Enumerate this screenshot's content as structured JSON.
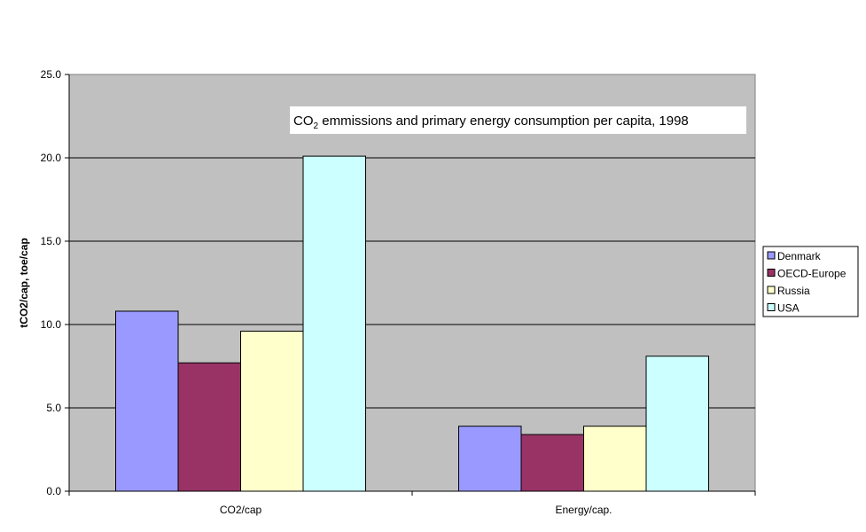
{
  "chart_data": {
    "type": "bar",
    "title": {
      "prefix": "CO",
      "subscript": "2",
      "suffix": " emmissions and primary energy consumption per capita, 1998"
    },
    "xlabel": "",
    "ylabel": "tCO2/cap, toe/cap",
    "categories": [
      "CO2/cap",
      "Energy/cap."
    ],
    "ylim": [
      0,
      25
    ],
    "yticks": [
      "0.0",
      "5.0",
      "10.0",
      "15.0",
      "20.0",
      "25.0"
    ],
    "grid": true,
    "legend_position": "right",
    "series": [
      {
        "name": "Denmark",
        "color": "#9999ff",
        "values": [
          10.8,
          3.9
        ]
      },
      {
        "name": "OECD-Europe",
        "color": "#993366",
        "values": [
          7.7,
          3.4
        ]
      },
      {
        "name": "Russia",
        "color": "#ffffcc",
        "values": [
          9.6,
          3.9
        ]
      },
      {
        "name": "USA",
        "color": "#ccffff",
        "values": [
          20.1,
          8.1
        ]
      }
    ],
    "plot_background": "#c0c0c0"
  }
}
